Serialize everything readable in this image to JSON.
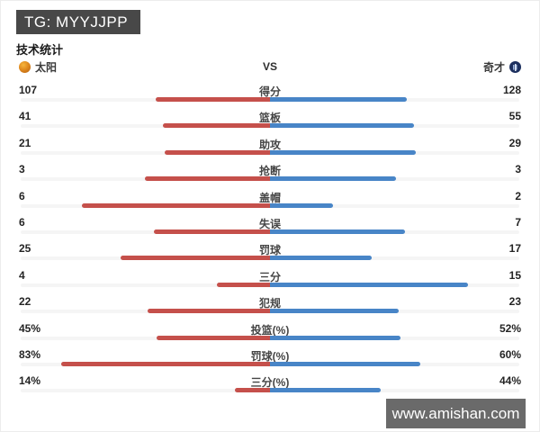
{
  "topbar": {
    "title": "TG: MYYJJPP"
  },
  "section_title": "技术统计",
  "teams": {
    "home": "太阳",
    "away": "奇才",
    "vs": "VS"
  },
  "rows": [
    {
      "label": "得分",
      "home": "107",
      "away": "128"
    },
    {
      "label": "篮板",
      "home": "41",
      "away": "55"
    },
    {
      "label": "助攻",
      "home": "21",
      "away": "29"
    },
    {
      "label": "抢断",
      "home": "3",
      "away": "3"
    },
    {
      "label": "盖帽",
      "home": "6",
      "away": "2"
    },
    {
      "label": "失误",
      "home": "6",
      "away": "7"
    },
    {
      "label": "罚球",
      "home": "25",
      "away": "17"
    },
    {
      "label": "三分",
      "home": "4",
      "away": "15"
    },
    {
      "label": "犯规",
      "home": "22",
      "away": "23"
    },
    {
      "label": "投篮(%)",
      "home": "45%",
      "away": "52%"
    },
    {
      "label": "罚球(%)",
      "home": "83%",
      "away": "60%"
    },
    {
      "label": "三分(%)",
      "home": "14%",
      "away": "44%"
    }
  ],
  "watermark": "www.amishan.com",
  "colors": {
    "home_bar": "#c5504b",
    "away_bar": "#4885c7",
    "topbar_bg": "#484848",
    "watermark_bg": "#6a6a6a",
    "track": "#f5f5f5"
  },
  "chart_data": {
    "type": "bar",
    "title": "技术统计",
    "categories": [
      "得分",
      "篮板",
      "助攻",
      "抢断",
      "盖帽",
      "失误",
      "罚球",
      "三分",
      "犯规",
      "投篮(%)",
      "罚球(%)",
      "三分(%)"
    ],
    "series": [
      {
        "name": "太阳",
        "values": [
          107,
          41,
          21,
          3,
          6,
          6,
          25,
          4,
          22,
          45,
          83,
          14
        ]
      },
      {
        "name": "奇才",
        "values": [
          128,
          55,
          29,
          3,
          2,
          7,
          17,
          15,
          23,
          52,
          60,
          44
        ]
      }
    ],
    "percent_categories": [
      "投篮(%)",
      "罚球(%)",
      "三分(%)"
    ],
    "layout": "mirrored horizontal bars meeting at center; count rows scaled by share of row total, percent rows scaled to 0-100%",
    "legend_position": "top (team names with logos)",
    "grid": false
  }
}
